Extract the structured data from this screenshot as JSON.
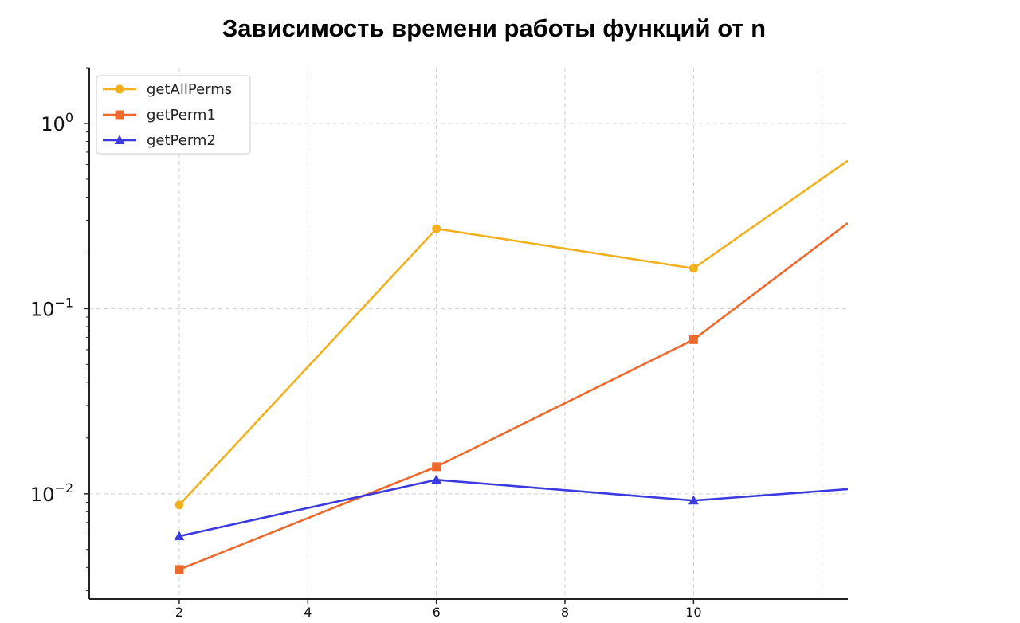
{
  "chart_data": {
    "type": "line",
    "title": "Зависимость времени работы функций от n",
    "xlabel": "",
    "ylabel": "",
    "x": [
      2,
      6,
      10,
      12.4
    ],
    "xticks": [
      2,
      4,
      6,
      8,
      10
    ],
    "xlim": [
      0.6,
      12.4
    ],
    "yscale": "log",
    "ylim": [
      0.0027,
      2.0
    ],
    "yticks": [
      {
        "value": 1,
        "base": "10",
        "exp": "0"
      },
      {
        "value": 0.1,
        "base": "10",
        "exp": "−1"
      },
      {
        "value": 0.01,
        "base": "10",
        "exp": "−2"
      }
    ],
    "grid": true,
    "legend_position": "top-left",
    "series": [
      {
        "name": "getAllPerms",
        "color": "#f2b01e",
        "marker": "circle",
        "values": [
          0.0087,
          0.27,
          0.165,
          0.63
        ]
      },
      {
        "name": "getPerm1",
        "color": "#ee6a2c",
        "marker": "square",
        "values": [
          0.0039,
          0.014,
          0.068,
          0.29
        ]
      },
      {
        "name": "getPerm2",
        "color": "#3a3adf",
        "marker": "triangle",
        "values": [
          0.0059,
          0.0119,
          0.0092,
          0.0106
        ]
      }
    ]
  }
}
